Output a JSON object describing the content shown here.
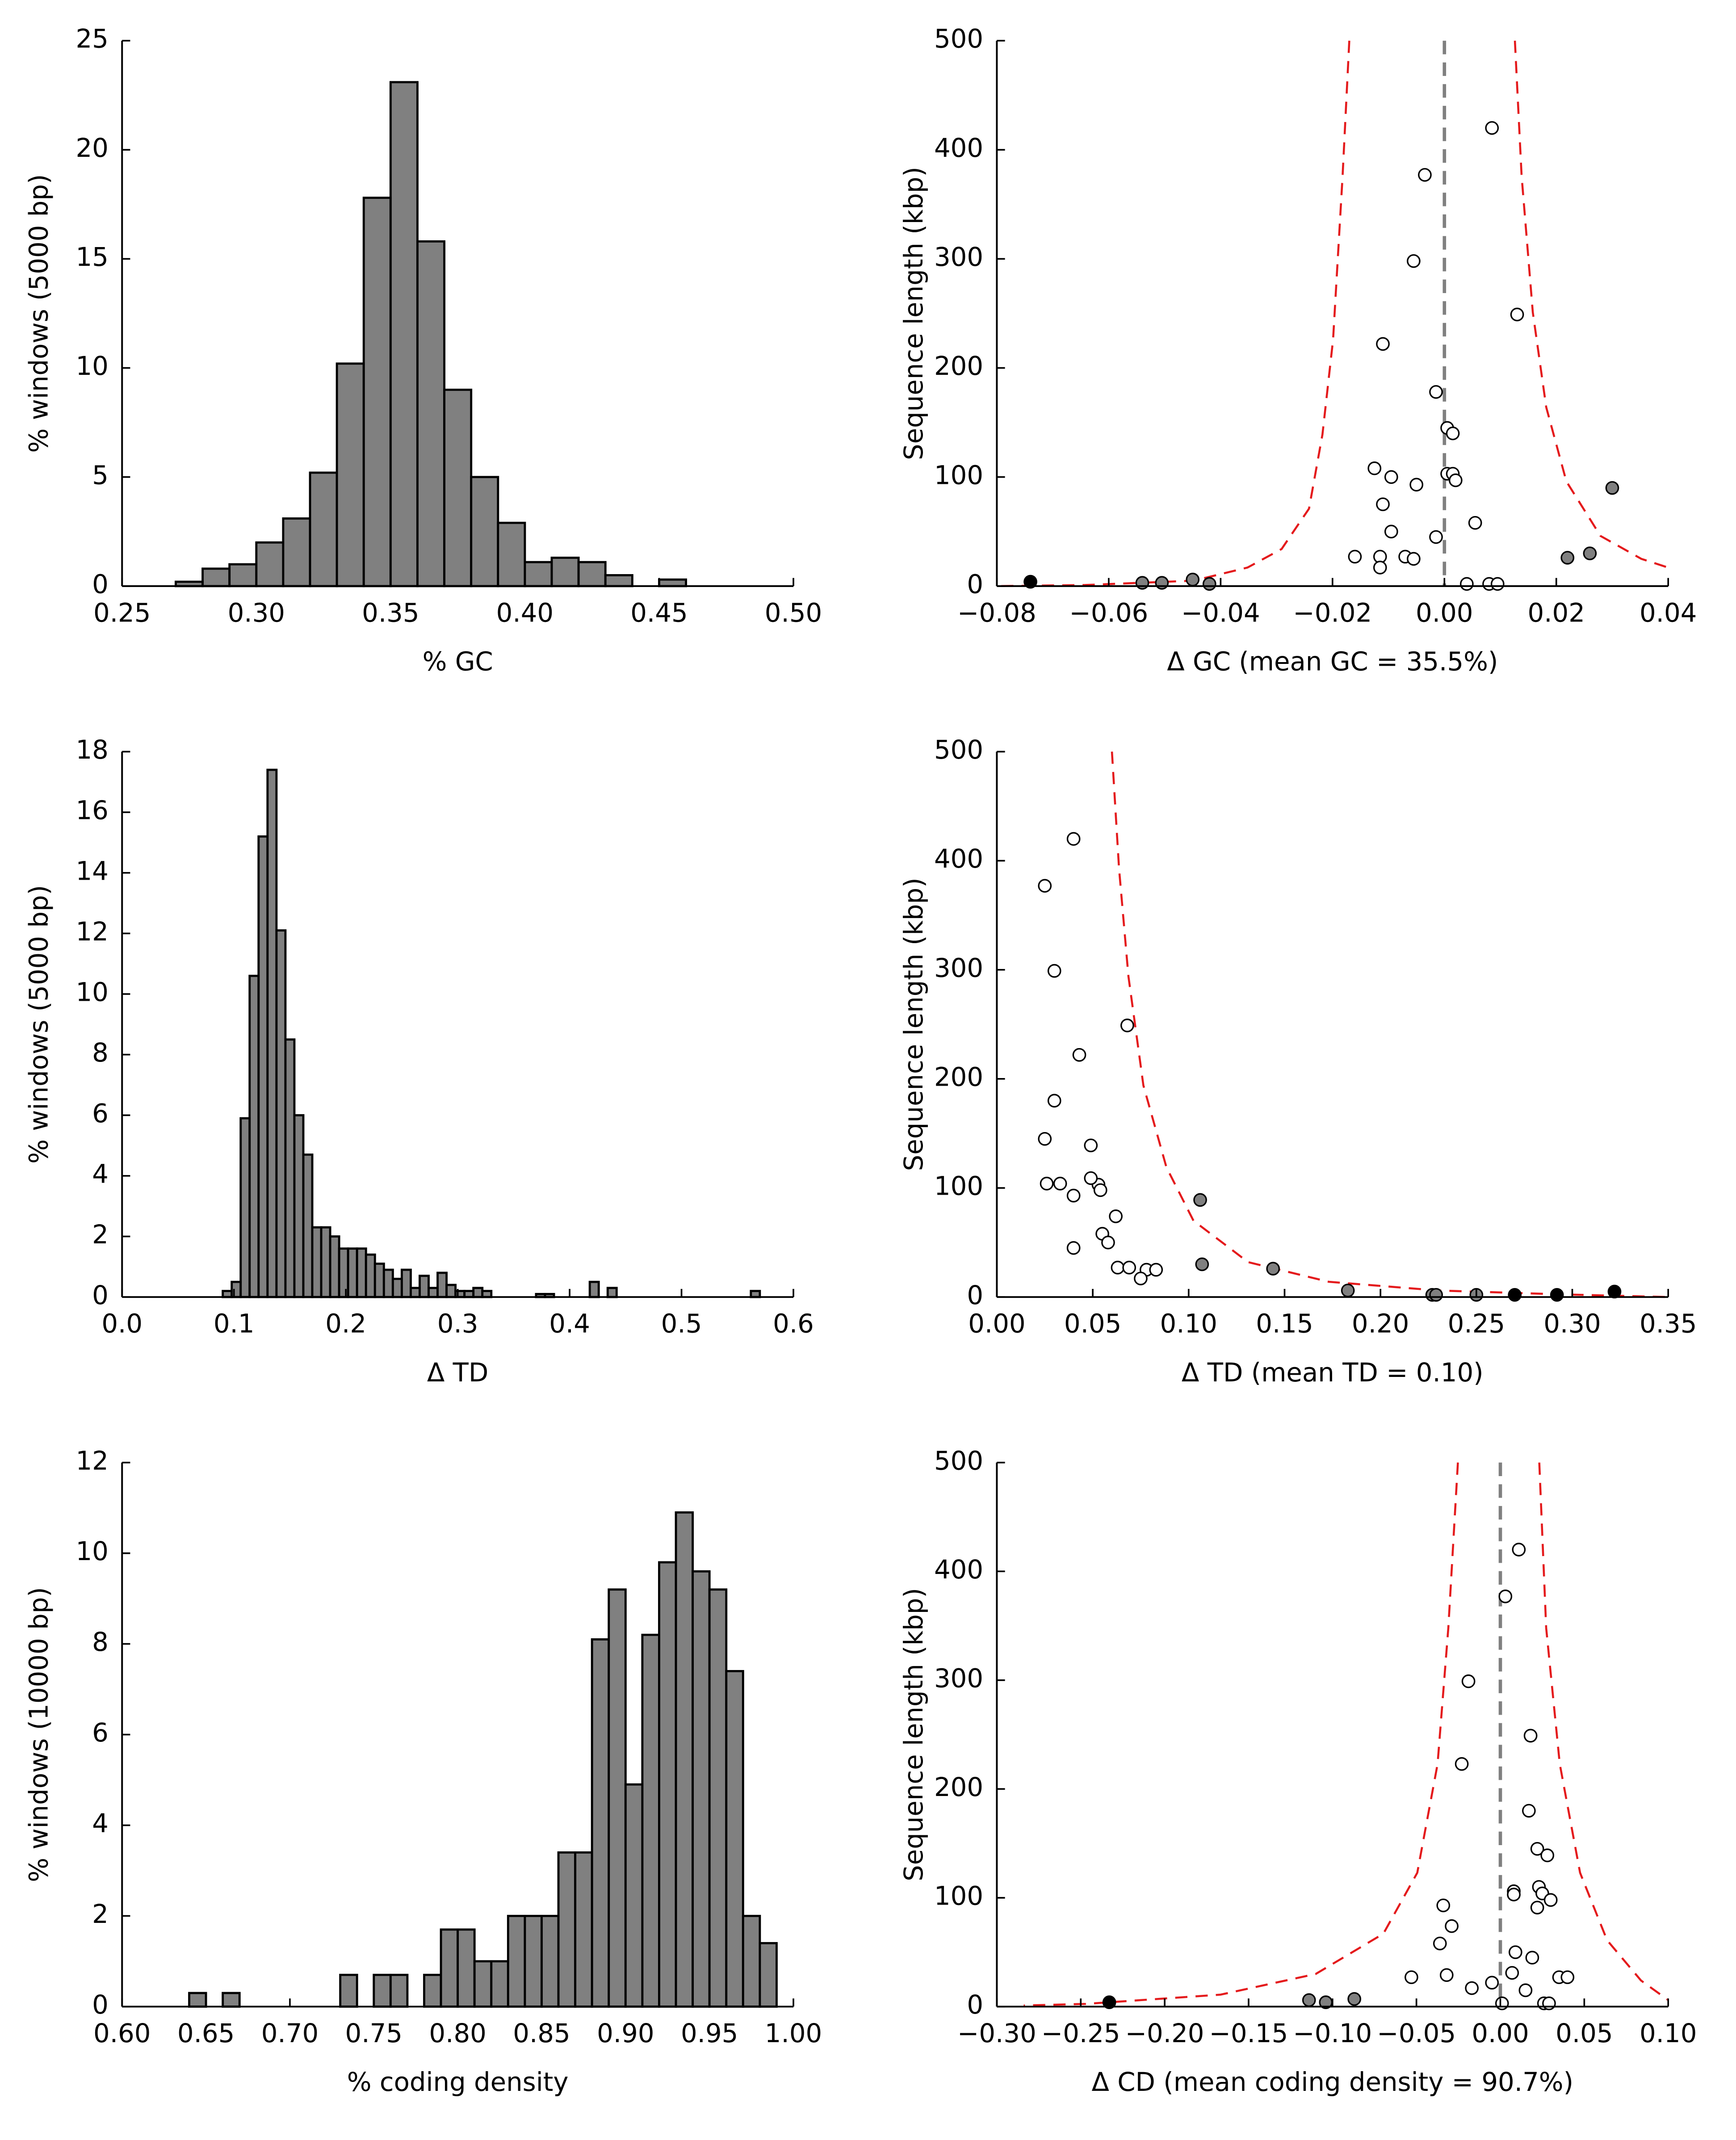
{
  "chart_data": [
    {
      "type": "histogram",
      "x_label": "% GC",
      "y_label": "% windows (5000 bp)",
      "color": "#808080",
      "bins": [
        0.27,
        0.28,
        0.29,
        0.3,
        0.31,
        0.32,
        0.33,
        0.34,
        0.35,
        0.36,
        0.37,
        0.38,
        0.39,
        0.4,
        0.41,
        0.42,
        0.43,
        0.44,
        0.45,
        0.46
      ],
      "values": [
        0.2,
        0.8,
        1.0,
        2.0,
        3.1,
        5.2,
        10.2,
        17.8,
        23.1,
        15.8,
        9.0,
        5.0,
        2.9,
        1.1,
        1.3,
        1.1,
        0.5,
        0,
        0.3
      ],
      "xlim": [
        0.25,
        0.5
      ],
      "ylim": [
        0,
        25
      ],
      "xticks": [
        0.25,
        {
          "value": 0.3,
          "label": "0.30"
        },
        0.35,
        {
          "value": 0.4,
          "label": "0.40"
        },
        0.45,
        {
          "value": 0.5,
          "label": "0.50"
        }
      ],
      "yticks": [
        0,
        5,
        10,
        15,
        20,
        25
      ]
    },
    {
      "type": "scatter",
      "x_label": "Δ GC (mean GC = 35.5%)",
      "y_label": "Sequence length (kbp)",
      "xlim": [
        -0.08,
        0.04
      ],
      "ylim": [
        0,
        500
      ],
      "vline": 0,
      "xticks": [
        {
          "value": -0.08,
          "label": "−0.08"
        },
        {
          "value": -0.06,
          "label": "−0.06"
        },
        {
          "value": -0.04,
          "label": "−0.04"
        },
        {
          "value": -0.02,
          "label": "−0.02"
        },
        {
          "value": 0,
          "label": "0.00"
        },
        {
          "value": 0.02,
          "label": "0.02"
        },
        {
          "value": 0.04,
          "label": "0.04"
        }
      ],
      "yticks": [
        0,
        100,
        200,
        300,
        400,
        500
      ],
      "curves": [
        {
          "color": "#e41a1c",
          "x": [
            -0.017,
            -0.0182,
            -0.0199,
            -0.0218,
            -0.0242,
            -0.0291,
            -0.0352,
            -0.0448,
            -0.0642,
            -0.08
          ],
          "values": [
            500,
            376,
            226,
            139,
            71,
            34,
            17,
            5,
            1,
            0
          ]
        },
        {
          "color": "#e41a1c",
          "x": [
            0.0126,
            0.0138,
            0.0158,
            0.0182,
            0.0218,
            0.0279,
            0.0352,
            0.04
          ],
          "values": [
            500,
            376,
            251,
            164,
            96,
            46,
            25,
            17
          ]
        }
      ],
      "series": [
        {
          "color": "#ffffff",
          "x": [
            0.0085,
            -0.0035,
            -0.0055,
            0.013,
            -0.011,
            -0.0015,
            0.0005,
            0.0015,
            -0.0125,
            -0.0095,
            0.0005,
            0.0015,
            0.002,
            -0.005,
            -0.011,
            0.0055,
            -0.0095,
            -0.0015,
            -0.016,
            -0.0115,
            -0.007,
            -0.0055,
            -0.0115,
            0.004,
            0.008,
            0.0095
          ],
          "values": [
            420,
            377,
            298,
            249,
            222,
            178,
            145,
            140,
            108,
            100,
            103,
            103,
            97,
            93,
            75,
            58,
            50,
            45,
            27,
            27,
            27,
            25,
            17,
            2,
            2,
            2
          ]
        },
        {
          "color": "#808080",
          "x": [
            0.03,
            0.026,
            0.022,
            -0.045,
            -0.054,
            -0.0505,
            -0.042
          ],
          "values": [
            90,
            30,
            26,
            6,
            3,
            3,
            2
          ]
        },
        {
          "color": "#000000",
          "x": [
            -0.074
          ],
          "values": [
            4
          ]
        }
      ]
    },
    {
      "type": "histogram",
      "x_label": "Δ TD",
      "y_label": "% windows (5000 bp)",
      "color": "#808080",
      "bins": [
        0.09,
        0.098,
        0.106,
        0.114,
        0.122,
        0.13,
        0.138,
        0.146,
        0.154,
        0.162,
        0.17,
        0.178,
        0.186,
        0.194,
        0.202,
        0.21,
        0.218,
        0.226,
        0.234,
        0.242,
        0.25,
        0.258,
        0.266,
        0.274,
        0.282,
        0.29,
        0.298,
        0.306,
        0.314,
        0.322,
        0.33,
        0.338,
        0.346,
        0.354,
        0.362,
        0.37,
        0.378,
        0.386,
        0.394,
        0.402,
        0.41,
        0.418,
        0.426,
        0.434,
        0.442,
        0.45,
        0.458,
        0.466,
        0.474,
        0.482,
        0.49,
        0.498,
        0.506,
        0.514,
        0.522,
        0.53,
        0.538,
        0.546,
        0.554,
        0.562,
        0.57,
        0.578
      ],
      "values": [
        0.2,
        0.5,
        5.9,
        10.6,
        15.2,
        17.4,
        12.1,
        8.5,
        6.0,
        4.7,
        2.3,
        2.3,
        2.0,
        1.6,
        1.6,
        1.6,
        1.4,
        1.1,
        0.9,
        0.6,
        0.9,
        0.3,
        0.7,
        0.3,
        0.8,
        0.4,
        0.2,
        0.2,
        0.3,
        0.2,
        0,
        0,
        0,
        0,
        0,
        0.1,
        0.1,
        0,
        0,
        0,
        0,
        0.5,
        0,
        0.3,
        0,
        0,
        0,
        0,
        0,
        0,
        0,
        0,
        0,
        0,
        0,
        0,
        0,
        0,
        0,
        0.2,
        0
      ],
      "xlim": [
        0,
        0.6
      ],
      "ylim": [
        0,
        18
      ],
      "xticks": [
        {
          "value": 0,
          "label": "0.0"
        },
        {
          "value": 0.1,
          "label": "0.1"
        },
        {
          "value": 0.2,
          "label": "0.2"
        },
        {
          "value": 0.3,
          "label": "0.3"
        },
        {
          "value": 0.4,
          "label": "0.4"
        },
        {
          "value": 0.5,
          "label": "0.5"
        },
        {
          "value": 0.6,
          "label": "0.6"
        }
      ],
      "yticks": [
        0,
        2,
        4,
        6,
        8,
        10,
        12,
        14,
        16,
        18
      ]
    },
    {
      "type": "scatter",
      "x_label": "Δ TD (mean TD = 0.10)",
      "y_label": "Sequence length (kbp)",
      "xlim": [
        0,
        0.35
      ],
      "ylim": [
        0,
        500
      ],
      "xticks": [
        {
          "value": 0,
          "label": "0.00"
        },
        0.05,
        {
          "value": 0.1,
          "label": "0.10"
        },
        0.15,
        {
          "value": 0.2,
          "label": "0.20"
        },
        0.25,
        {
          "value": 0.3,
          "label": "0.30"
        },
        0.35
      ],
      "yticks": [
        0,
        100,
        200,
        300,
        400,
        500
      ],
      "curves": [
        {
          "color": "#e41a1c",
          "x": [
            0.06,
            0.0637,
            0.0686,
            0.0764,
            0.0884,
            0.1025,
            0.131,
            0.173,
            0.23,
            0.293,
            0.35
          ],
          "values": [
            500,
            393,
            294,
            194,
            119,
            70,
            32,
            14,
            6,
            2.5,
            0
          ]
        }
      ],
      "series": [
        {
          "color": "#ffffff",
          "x": [
            0.04,
            0.025,
            0.03,
            0.068,
            0.043,
            0.03,
            0.025,
            0.049,
            0.053,
            0.054,
            0.026,
            0.033,
            0.04,
            0.049,
            0.062,
            0.055,
            0.058,
            0.04,
            0.063,
            0.069,
            0.078,
            0.083,
            0.075
          ],
          "values": [
            420,
            377,
            299,
            249,
            222,
            180,
            145,
            139,
            103,
            98,
            104,
            104,
            93,
            109,
            74,
            58,
            50,
            45,
            27,
            27,
            25,
            25,
            17
          ]
        },
        {
          "color": "#808080",
          "x": [
            0.106,
            0.107,
            0.144,
            0.183,
            0.227,
            0.229,
            0.25
          ],
          "values": [
            89,
            30,
            26,
            6,
            2,
            2,
            2
          ]
        },
        {
          "color": "#000000",
          "x": [
            0.27,
            0.292,
            0.322
          ],
          "values": [
            2,
            2,
            5
          ]
        }
      ]
    },
    {
      "type": "histogram",
      "x_label": "% coding density",
      "y_label": "% windows (10000 bp)",
      "color": "#808080",
      "bins": [
        0.64,
        0.65,
        0.66,
        0.67,
        0.68,
        0.69,
        0.7,
        0.71,
        0.72,
        0.73,
        0.74,
        0.75,
        0.76,
        0.77,
        0.78,
        0.79,
        0.8,
        0.81,
        0.82,
        0.83,
        0.84,
        0.85,
        0.86,
        0.87,
        0.88,
        0.89,
        0.9,
        0.91,
        0.92,
        0.93,
        0.94,
        0.95,
        0.96,
        0.97,
        0.98,
        0.99
      ],
      "values": [
        0.3,
        0,
        0.3,
        0,
        0,
        0,
        0,
        0,
        0,
        0.7,
        0,
        0.7,
        0.7,
        0,
        0.7,
        1.7,
        1.7,
        1.0,
        1.0,
        2.0,
        2.0,
        2.0,
        3.4,
        3.4,
        8.1,
        9.2,
        4.9,
        8.2,
        9.8,
        10.9,
        9.6,
        9.2,
        7.4,
        2.0,
        1.4
      ],
      "xlim": [
        0.6,
        1.0
      ],
      "ylim": [
        0,
        12
      ],
      "xticks": [
        {
          "value": 0.6,
          "label": "0.60"
        },
        0.65,
        {
          "value": 0.7,
          "label": "0.70"
        },
        0.75,
        {
          "value": 0.8,
          "label": "0.80"
        },
        0.85,
        {
          "value": 0.9,
          "label": "0.90"
        },
        0.95,
        {
          "value": 1.0,
          "label": "1.00"
        }
      ],
      "yticks": [
        0,
        2,
        4,
        6,
        8,
        10,
        12
      ]
    },
    {
      "type": "scatter",
      "x_label": "Δ CD (mean coding density = 90.7%)",
      "y_label": "Sequence length (kbp)",
      "xlim": [
        -0.3,
        0.1
      ],
      "ylim": [
        0,
        500
      ],
      "vline": 0,
      "xticks": [
        {
          "value": -0.3,
          "label": "−0.30"
        },
        {
          "value": -0.25,
          "label": "−0.25"
        },
        {
          "value": -0.2,
          "label": "−0.20"
        },
        {
          "value": -0.15,
          "label": "−0.15"
        },
        {
          "value": -0.1,
          "label": "−0.10"
        },
        {
          "value": -0.05,
          "label": "−0.05"
        },
        {
          "value": 0,
          "label": "0.00"
        },
        0.05,
        {
          "value": 0.1,
          "label": "0.10"
        }
      ],
      "yticks": [
        0,
        100,
        200,
        300,
        400,
        500
      ],
      "curves": [
        {
          "color": "#e41a1c",
          "x": [
            -0.0253,
            -0.031,
            -0.0374,
            -0.0495,
            -0.0697,
            -0.11,
            -0.1667,
            -0.247,
            -0.284
          ],
          "values": [
            500,
            348,
            223,
            123,
            67,
            30,
            11,
            2.5,
            1
          ]
        },
        {
          "color": "#e41a1c",
          "x": [
            0.0232,
            0.0273,
            0.0354,
            0.0475,
            0.0636,
            0.0838,
            0.1
          ],
          "values": [
            500,
            348,
            223,
            123,
            61,
            24,
            6
          ]
        }
      ],
      "series": [
        {
          "color": "#ffffff",
          "x": [
            0.011,
            0.003,
            -0.019,
            0.018,
            -0.023,
            0.017,
            0.022,
            0.028,
            0.023,
            0.025,
            0.008,
            0.008,
            0.022,
            -0.034,
            -0.029,
            0.03,
            0.019,
            -0.036,
            0.009,
            -0.053,
            -0.032,
            0.007,
            -0.017,
            -0.005,
            0.015,
            0.035,
            0.04,
            0.001,
            0.026,
            0.029
          ],
          "values": [
            420,
            377,
            299,
            249,
            223,
            180,
            145,
            139,
            110,
            104,
            106,
            103,
            91,
            93,
            74,
            98,
            45,
            58,
            50,
            27,
            29,
            31,
            17,
            22,
            15,
            27,
            27,
            3,
            3,
            3
          ]
        },
        {
          "color": "#808080",
          "x": [
            -0.114,
            -0.104,
            -0.087
          ],
          "values": [
            6,
            4,
            7
          ]
        },
        {
          "color": "#000000",
          "x": [
            -0.233
          ],
          "values": [
            4
          ]
        }
      ]
    }
  ]
}
